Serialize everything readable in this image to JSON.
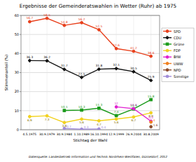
{
  "chart_data": {
    "type": "line",
    "title": "Ergebnisse der Gemeinderatswahlen in Wetter (Ruhr) ab 1975",
    "x_label": "Stichtag der Wahl",
    "y_label": "Stimmenanteil (%)",
    "source": "Datenquelle: Landesbetrieb Information und Technik Nordrhein-Westfalen, Düsseldorf, 2012",
    "categories": [
      "4.5.1975",
      "30.9.1979",
      "30.9.1984",
      "1.10.1989",
      "16.10.1994",
      "12.9.1999",
      "26.9.2004",
      "30.8.2009"
    ],
    "ylim": [
      0,
      60
    ],
    "yticks": [
      0,
      10,
      20,
      30,
      40,
      50,
      60
    ],
    "grid": true,
    "legend": "right",
    "data_labels": true,
    "series": [
      {
        "name": "SPD",
        "color": "#e8401c",
        "marker": "circle",
        "values": [
          56.7,
          58.5,
          54.8,
          56.2,
          52.5,
          42.6,
          41.2,
          38.6
        ]
      },
      {
        "name": "CDU",
        "color": "#111111",
        "marker": "diamond",
        "values": [
          36.3,
          36.2,
          31.7,
          27.5,
          31.8,
          32.1,
          30.5,
          25.9
        ]
      },
      {
        "name": "Grüne",
        "color": "#1a9a1a",
        "marker": "square",
        "values": [
          null,
          null,
          10.1,
          10.3,
          11.3,
          7.4,
          10.9,
          15.8
        ]
      },
      {
        "name": "FDP",
        "color": "#f2d21e",
        "marker": "circle",
        "values": [
          6.9,
          7.3,
          3.8,
          5.6,
          4.7,
          5.6,
          6.7,
          8.9
        ]
      },
      {
        "name": "BfW",
        "color": "#e020d0",
        "marker": "circle",
        "values": [
          null,
          null,
          null,
          null,
          null,
          12.0,
          11.1,
          4.5
        ]
      },
      {
        "name": "UWW",
        "color": "#f08020",
        "marker": "circle",
        "values": [
          null,
          null,
          null,
          null,
          null,
          null,
          null,
          4.0
        ]
      },
      {
        "name": "NPD",
        "color": "#8b4a2b",
        "marker": "circle",
        "values": [
          null,
          null,
          null,
          null,
          null,
          null,
          null,
          1.6
        ]
      },
      {
        "name": "Sonstige",
        "color": "#a08cd8",
        "marker": "circle",
        "values": [
          null,
          null,
          0.7,
          0.3,
          0.4,
          null,
          null,
          null
        ]
      }
    ]
  }
}
